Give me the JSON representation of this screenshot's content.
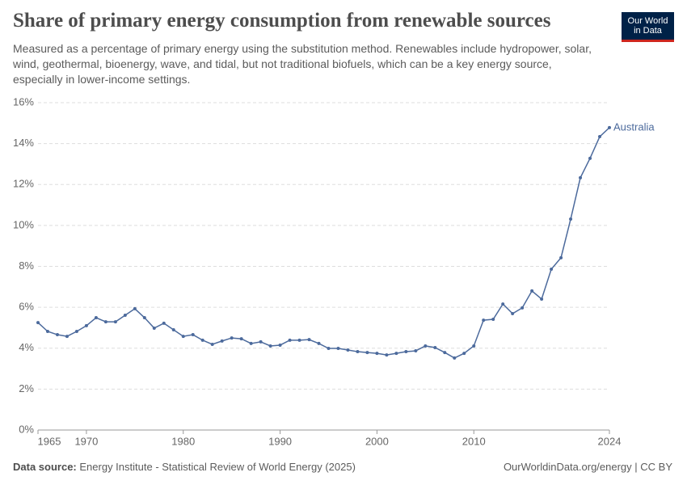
{
  "chart_data": {
    "type": "line",
    "title": "Share of primary energy consumption from renewable sources",
    "subtitle": "Measured as a percentage of primary energy using the substitution method. Renewables include hydropower, solar, wind, geothermal, bioenergy, wave, and tidal, but not traditional biofuels, which can be a key energy source, especially in lower-income settings.",
    "logo": [
      "Our World",
      "in Data"
    ],
    "source_label": "Data source:",
    "source": "Energy Institute - Statistical Review of World Energy (2025)",
    "footer_right": "OurWorldinData.org/energy | CC BY",
    "x": [
      1965,
      1966,
      1967,
      1968,
      1969,
      1970,
      1971,
      1972,
      1973,
      1974,
      1975,
      1976,
      1977,
      1978,
      1979,
      1980,
      1981,
      1982,
      1983,
      1984,
      1985,
      1986,
      1987,
      1988,
      1989,
      1990,
      1991,
      1992,
      1993,
      1994,
      1995,
      1996,
      1997,
      1998,
      1999,
      2000,
      2001,
      2002,
      2003,
      2004,
      2005,
      2006,
      2007,
      2008,
      2009,
      2010,
      2011,
      2012,
      2013,
      2014,
      2015,
      2016,
      2017,
      2018,
      2019,
      2020,
      2021,
      2022,
      2023,
      2024
    ],
    "series": [
      {
        "name": "Australia",
        "color": "#4c6a9c",
        "values": [
          5.25,
          4.82,
          4.66,
          4.58,
          4.82,
          5.1,
          5.49,
          5.29,
          5.29,
          5.61,
          5.93,
          5.49,
          4.98,
          5.22,
          4.9,
          4.58,
          4.66,
          4.39,
          4.19,
          4.35,
          4.5,
          4.46,
          4.23,
          4.31,
          4.11,
          4.15,
          4.39,
          4.39,
          4.42,
          4.23,
          3.99,
          3.99,
          3.91,
          3.83,
          3.79,
          3.75,
          3.67,
          3.75,
          3.83,
          3.87,
          4.11,
          4.03,
          3.79,
          3.52,
          3.75,
          4.11,
          5.37,
          5.41,
          6.16,
          5.69,
          5.97,
          6.8,
          6.4,
          7.86,
          8.42,
          10.31,
          12.33,
          13.28,
          14.34,
          14.78
        ]
      }
    ],
    "xlim": [
      1965,
      2024
    ],
    "xticks": [
      1965,
      1970,
      1980,
      1990,
      2000,
      2010,
      2024
    ],
    "ylim": [
      0,
      16
    ],
    "yticks": [
      {
        "value": 0,
        "label": "0%"
      },
      {
        "value": 2,
        "label": "2%"
      },
      {
        "value": 4,
        "label": "4%"
      },
      {
        "value": 6,
        "label": "6%"
      },
      {
        "value": 8,
        "label": "8%"
      },
      {
        "value": 10,
        "label": "10%"
      },
      {
        "value": 12,
        "label": "12%"
      },
      {
        "value": 14,
        "label": "14%"
      },
      {
        "value": 16,
        "label": "16%"
      }
    ],
    "grid": true
  }
}
